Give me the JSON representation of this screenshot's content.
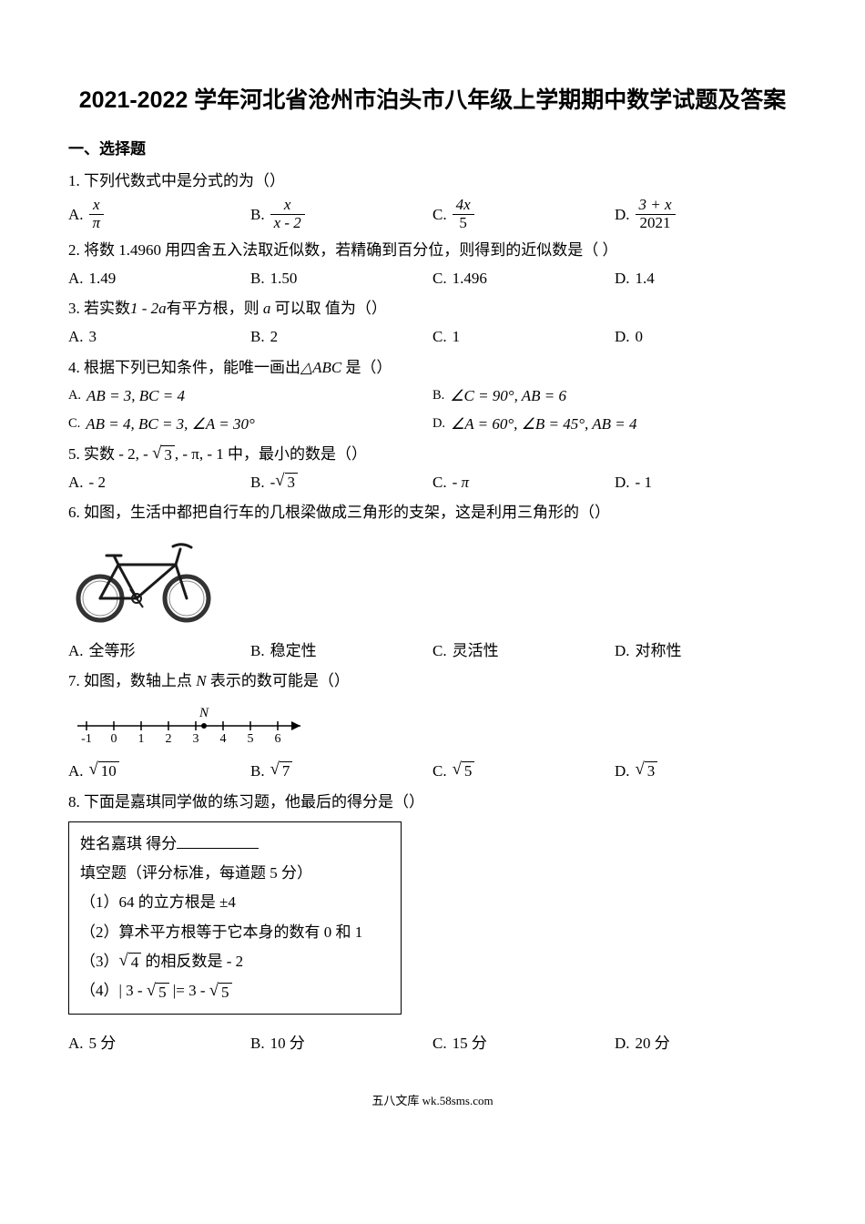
{
  "title": "2021-2022 学年河北省沧州市泊头市八年级上学期期中数学试题及答案",
  "section1": "一、选择题",
  "q1": {
    "stem": "1.  下列代数式中是分式的为（）",
    "A": {
      "num": "x",
      "den": "π"
    },
    "B": {
      "num": "x",
      "den": "x - 2"
    },
    "C": {
      "num": "4x",
      "den": "5"
    },
    "D": {
      "num": "3 + x",
      "den": "2021"
    }
  },
  "q2": {
    "stem": "2.  将数 1.4960 用四舍五入法取近似数，若精确到百分位，则得到的近似数是（    ）",
    "A": "1.49",
    "B": "1.50",
    "C": "1.496",
    "D": "1.4"
  },
  "q3": {
    "stem_pre": "3.  若实数",
    "expr": "1 - 2a",
    "stem_mid": "有平方根，则 ",
    "var": "a",
    "stem_post": " 可以取   值为（）",
    "A": "3",
    "B": "2",
    "C": "1",
    "D": "0"
  },
  "q4": {
    "stem_pre": "4.  根据下列已知条件，能唯一画出",
    "tri": "△ABC",
    "stem_post": "   是（）",
    "A": "AB = 3, BC = 4",
    "B": "∠C = 90°, AB = 6",
    "C": "AB = 4, BC = 3, ∠A = 30°",
    "D": "∠A = 60°, ∠B = 45°, AB = 4"
  },
  "q5": {
    "stem_pre": "5.  实数 - 2, - ",
    "sqrt1": "3",
    "stem_mid": ", - π, - 1 中，最小的数是（）",
    "A": "- 2",
    "B_pre": "- ",
    "B_sqrt": "3",
    "C": "- π",
    "D": "- 1"
  },
  "q6": {
    "stem": "6.  如图，生活中都把自行车的几根梁做成三角形的支架，这是利用三角形的（）",
    "A": "全等形",
    "B": "稳定性",
    "C": "灵活性",
    "D": "对称性"
  },
  "q7": {
    "stem_pre": "7.  如图，数轴上点 ",
    "var": "N",
    "stem_post": " 表示的数可能是（）",
    "A_sqrt": "10",
    "B_sqrt": "7",
    "C_sqrt": "5",
    "D_sqrt": "3",
    "numberline": {
      "ticks": [
        -1,
        0,
        1,
        2,
        3,
        4,
        5,
        6
      ],
      "N_pos": 3.3,
      "N_label": "N"
    }
  },
  "q8": {
    "stem": "8.  下面是嘉琪同学做的练习题，他最后的得分是（）",
    "box": {
      "line1_pre": "姓名嘉琪 得分",
      "line2": "填空题（评分标准，每道题 5 分）",
      "item1": "（1）64 的立方根是 ±4",
      "item2": "（2）算术平方根等于它本身的数有 0 和 1",
      "item3_pre": "（3）",
      "item3_sqrt": "4",
      "item3_post": " 的相反数是 - 2",
      "item4_pre": "（4）| 3 - ",
      "item4_sqrt1": "5",
      "item4_mid": " |= 3 - ",
      "item4_sqrt2": "5"
    },
    "A": "5 分",
    "B": "10 分",
    "C": "15 分",
    "D": "20 分"
  },
  "footer": "五八文库 wk.58sms.com",
  "labels": {
    "A": "A.",
    "B": "B.",
    "C": "C.",
    "D": "D."
  },
  "colors": {
    "background": "#ffffff",
    "text": "#000000",
    "bike_outline": "#1a1a1a",
    "bike_tire": "#555555"
  }
}
